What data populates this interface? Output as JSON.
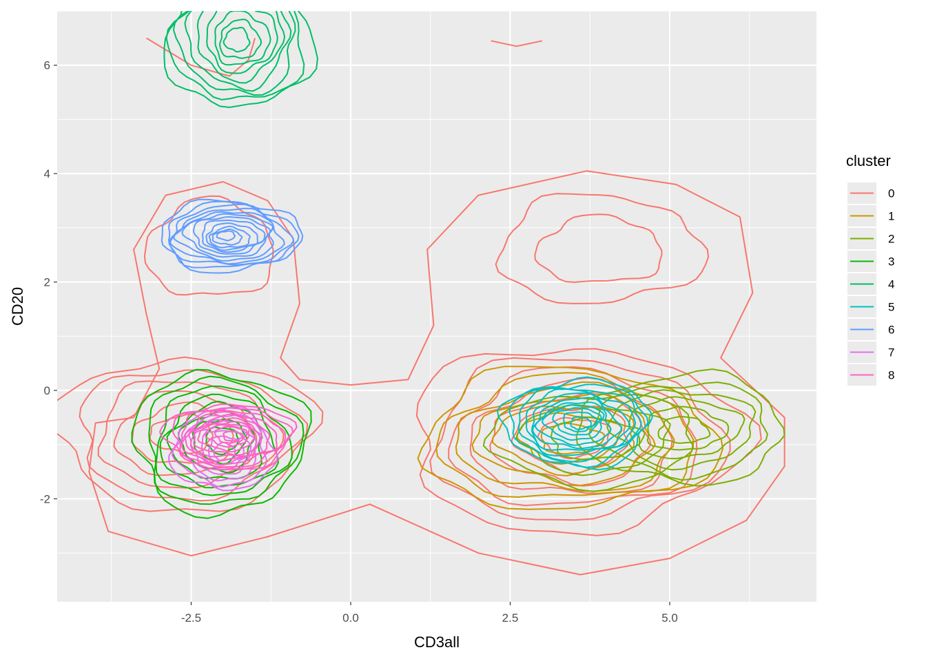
{
  "chart_data": {
    "type": "contour",
    "xlabel": "CD3all",
    "ylabel": "CD20",
    "xlim": [
      -4.6,
      7.3
    ],
    "ylim": [
      -3.9,
      7.0
    ],
    "x_ticks": [
      -2.5,
      0.0,
      2.5,
      5.0
    ],
    "x_tick_labels": [
      "-2.5",
      "0.0",
      "2.5",
      "5.0"
    ],
    "y_ticks": [
      -2,
      0,
      2,
      4,
      6
    ],
    "y_tick_labels": [
      "-2",
      "0",
      "2",
      "4",
      "6"
    ],
    "grid": true,
    "legend": {
      "title": "cluster",
      "position": "right"
    },
    "series": [
      {
        "name": "0",
        "color": "#F8766D",
        "blobs": [
          {
            "cx": -2.6,
            "cy": -0.8,
            "rx": 2.0,
            "ry": 1.4,
            "levels": 6
          },
          {
            "cx": 3.5,
            "cy": -0.9,
            "rx": 2.6,
            "ry": 1.7,
            "levels": 7
          },
          {
            "cx": 3.9,
            "cy": 2.6,
            "rx": 1.6,
            "ry": 1.0,
            "levels": 2
          },
          {
            "cx": -2.2,
            "cy": 2.6,
            "rx": 1.0,
            "ry": 0.9,
            "levels": 1
          }
        ],
        "outlines": [
          [
            [
              -3.4,
              -0.5
            ],
            [
              -3.0,
              0.4
            ],
            [
              -3.2,
              1.4
            ],
            [
              -3.4,
              2.6
            ],
            [
              -2.9,
              3.6
            ],
            [
              -2.0,
              3.85
            ],
            [
              -1.3,
              3.5
            ],
            [
              -0.9,
              2.8
            ],
            [
              -0.8,
              1.6
            ],
            [
              -1.1,
              0.6
            ],
            [
              -0.8,
              0.2
            ],
            [
              0.0,
              0.1
            ],
            [
              0.9,
              0.2
            ],
            [
              1.3,
              1.2
            ],
            [
              1.2,
              2.6
            ],
            [
              2.0,
              3.6
            ],
            [
              3.7,
              4.05
            ],
            [
              5.1,
              3.8
            ],
            [
              6.1,
              3.2
            ],
            [
              6.3,
              1.8
            ],
            [
              5.8,
              0.6
            ],
            [
              6.8,
              -0.5
            ],
            [
              6.8,
              -1.4
            ],
            [
              6.2,
              -2.4
            ],
            [
              5.0,
              -3.1
            ],
            [
              3.6,
              -3.4
            ],
            [
              2.0,
              -3.0
            ],
            [
              0.3,
              -2.1
            ],
            [
              -1.3,
              -2.7
            ],
            [
              -2.5,
              -3.05
            ],
            [
              -3.8,
              -2.6
            ],
            [
              -4.1,
              -1.5
            ],
            [
              -4.0,
              -0.6
            ]
          ],
          [
            [
              -3.2,
              6.5
            ],
            [
              -2.5,
              6.0
            ],
            [
              -1.9,
              5.8
            ],
            [
              -1.6,
              6.1
            ],
            [
              -1.5,
              6.5
            ]
          ],
          [
            [
              2.2,
              6.45
            ],
            [
              2.6,
              6.35
            ],
            [
              3.0,
              6.45
            ]
          ]
        ]
      },
      {
        "name": "1",
        "color": "#CD9600",
        "blobs": [
          {
            "cx": 3.4,
            "cy": -0.9,
            "rx": 2.3,
            "ry": 1.3,
            "levels": 7
          }
        ]
      },
      {
        "name": "2",
        "color": "#7CAE00",
        "blobs": [
          {
            "cx": 5.2,
            "cy": -0.7,
            "rx": 1.6,
            "ry": 1.0,
            "levels": 6
          },
          {
            "cx": 3.8,
            "cy": -0.9,
            "rx": 1.6,
            "ry": 0.85,
            "levels": 3
          }
        ]
      },
      {
        "name": "3",
        "color": "#0CB702",
        "blobs": [
          {
            "cx": -2.05,
            "cy": -0.95,
            "rx": 1.35,
            "ry": 1.3,
            "levels": 8
          }
        ]
      },
      {
        "name": "4",
        "color": "#00BE67",
        "blobs": [
          {
            "cx": -1.75,
            "cy": 6.5,
            "rx": 1.15,
            "ry": 1.3,
            "levels": 9
          }
        ]
      },
      {
        "name": "5",
        "color": "#00BFC4",
        "blobs": [
          {
            "cx": 3.55,
            "cy": -0.6,
            "rx": 1.15,
            "ry": 0.8,
            "levels": 11
          }
        ]
      },
      {
        "name": "6",
        "color": "#619CFF",
        "blobs": [
          {
            "cx": -1.9,
            "cy": 2.85,
            "rx": 1.1,
            "ry": 0.65,
            "levels": 12
          }
        ]
      },
      {
        "name": "7",
        "color": "#E76BF3",
        "blobs": [
          {
            "cx": -2.0,
            "cy": -1.1,
            "rx": 0.8,
            "ry": 0.75,
            "levels": 7
          }
        ]
      },
      {
        "name": "8",
        "color": "#FF61C3",
        "blobs": [
          {
            "cx": -1.9,
            "cy": -0.85,
            "rx": 1.0,
            "ry": 0.6,
            "levels": 10
          }
        ]
      }
    ]
  }
}
